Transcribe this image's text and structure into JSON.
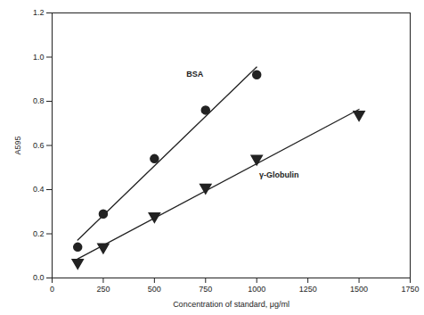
{
  "chart_data": {
    "type": "scatter",
    "x_label": "Concentration of standard, μg/ml",
    "y_label": "A595",
    "xlim": [
      0,
      1750
    ],
    "xticks": [
      0,
      250,
      500,
      750,
      1000,
      1250,
      1500,
      1750
    ],
    "ylim": [
      0,
      1.2
    ],
    "yticks": [
      {
        "value": 0,
        "label": "0.0"
      },
      0.2,
      0.4,
      0.6,
      0.8,
      {
        "value": 1,
        "label": "1.0"
      },
      1.2
    ],
    "grid": false,
    "series": [
      {
        "name": "BSA",
        "color": "#222222",
        "marker": "circle",
        "x": [
          125,
          250,
          500,
          750,
          1000
        ],
        "values": [
          0.14,
          0.29,
          0.54,
          0.76,
          0.92
        ]
      },
      {
        "name": "γ-Globulin",
        "color": "#222222",
        "marker": "triangle-down",
        "x": [
          125,
          250,
          500,
          750,
          1000,
          1500
        ],
        "values": [
          0.07,
          0.14,
          0.28,
          0.41,
          0.54,
          0.74
        ]
      }
    ]
  }
}
